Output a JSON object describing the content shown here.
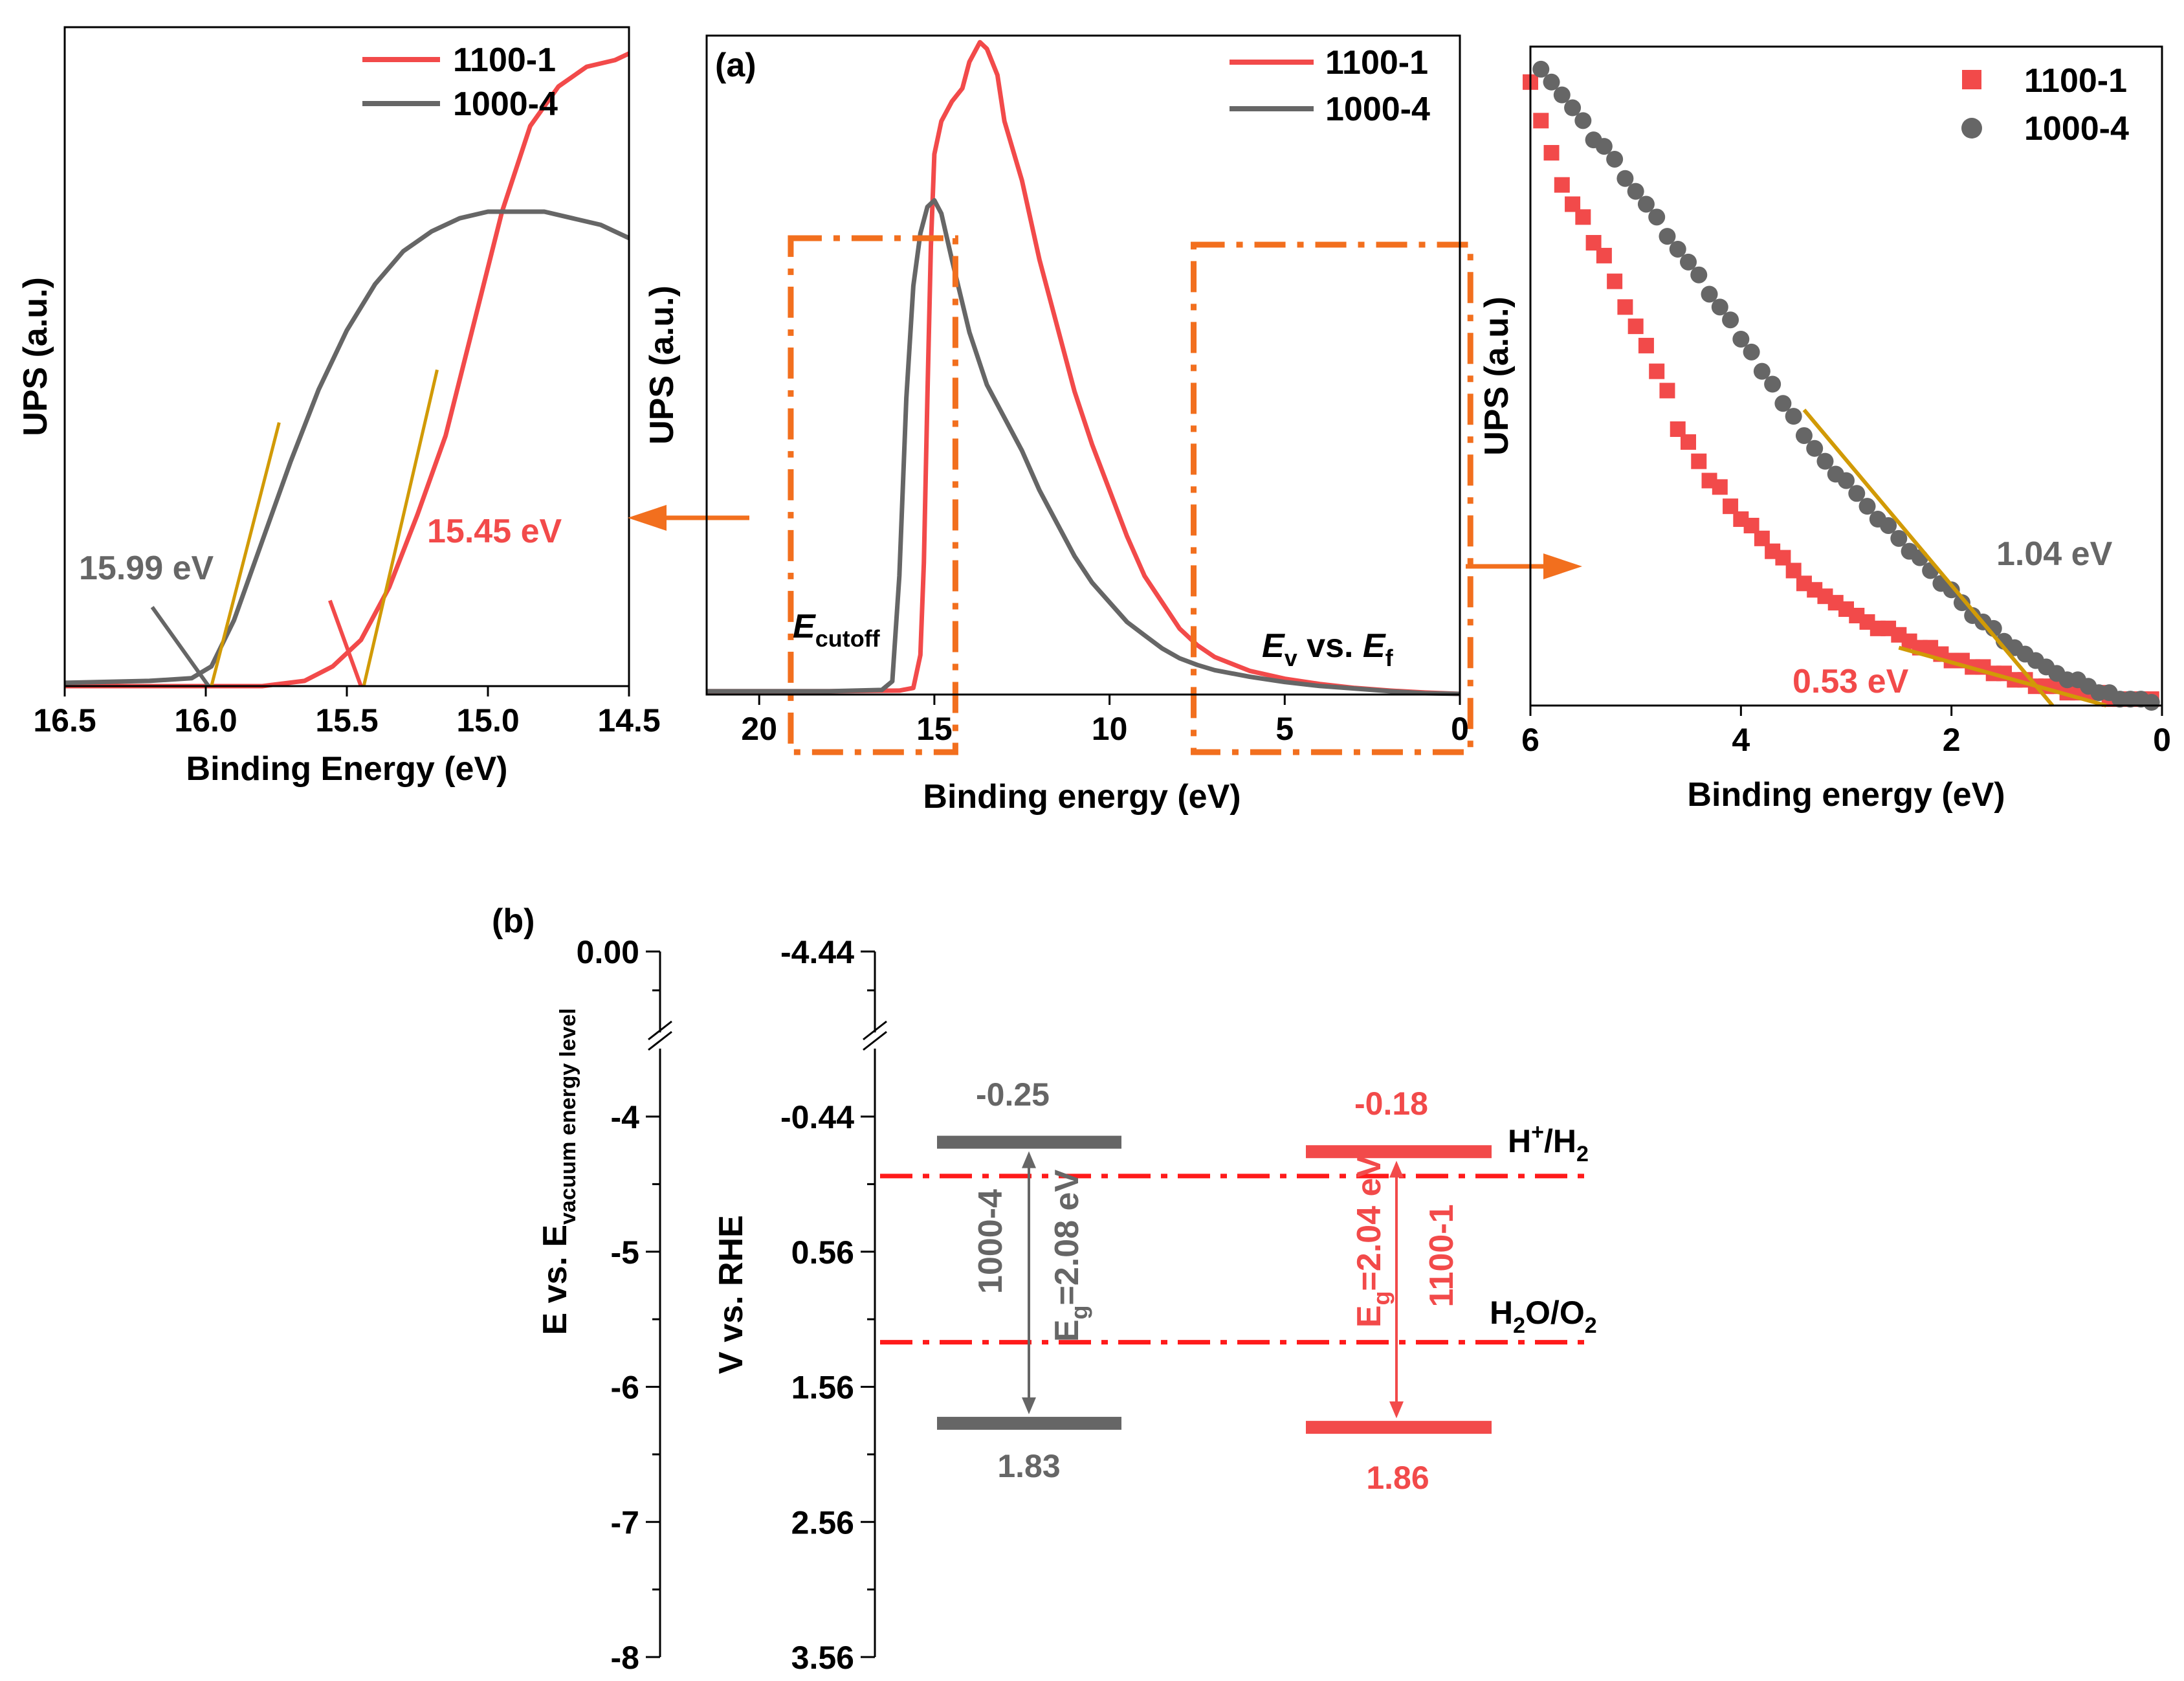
{
  "colors": {
    "red": "#f24a4a",
    "gray": "#666666",
    "orange": "#f26f1e",
    "fit": "#d19a06",
    "black": "#000000"
  },
  "chart_data": [
    {
      "id": "left-zoom",
      "type": "line",
      "title": "",
      "xlabel": "Binding Energy (eV)",
      "ylabel": "UPS (a.u.)",
      "xlim": [
        16.5,
        14.5
      ],
      "ylim": [
        0,
        1
      ],
      "x_ticks": [
        "16.5",
        "16.0",
        "15.5",
        "15.0",
        "14.5"
      ],
      "legend": [
        "1100-1",
        "1000-4"
      ],
      "series": [
        {
          "name": "1100-1",
          "color": "#f24a4a",
          "x": [
            16.5,
            16.2,
            16.0,
            15.8,
            15.65,
            15.55,
            15.45,
            15.35,
            15.25,
            15.15,
            15.05,
            14.95,
            14.85,
            14.75,
            14.65,
            14.55,
            14.5
          ],
          "y": [
            0.0,
            0.0,
            0.0,
            0.0,
            0.008,
            0.03,
            0.07,
            0.15,
            0.26,
            0.38,
            0.55,
            0.72,
            0.85,
            0.91,
            0.94,
            0.95,
            0.96
          ]
        },
        {
          "name": "1000-4",
          "color": "#666666",
          "x": [
            16.5,
            16.2,
            16.05,
            15.98,
            15.9,
            15.8,
            15.7,
            15.6,
            15.5,
            15.4,
            15.3,
            15.2,
            15.1,
            15.0,
            14.9,
            14.8,
            14.7,
            14.6,
            14.5
          ],
          "y": [
            0.005,
            0.008,
            0.012,
            0.03,
            0.1,
            0.22,
            0.34,
            0.45,
            0.54,
            0.61,
            0.66,
            0.69,
            0.71,
            0.72,
            0.72,
            0.72,
            0.71,
            0.7,
            0.68
          ]
        }
      ],
      "fit_lines": [
        {
          "color": "#d19a06",
          "x": [
            15.98,
            15.74
          ],
          "y": [
            0.0,
            0.4
          ]
        },
        {
          "color": "#d19a06",
          "x": [
            15.44,
            15.18
          ],
          "y": [
            0.0,
            0.48
          ]
        }
      ],
      "markers": [
        {
          "color": "#666666",
          "x": [
            16.19,
            15.99
          ],
          "y": [
            0.12,
            0.0
          ]
        },
        {
          "color": "#f24a4a",
          "x": [
            15.56,
            15.45
          ],
          "y": [
            0.13,
            0.0
          ]
        }
      ],
      "annotations": [
        {
          "text": "15.99 eV",
          "color": "#666666"
        },
        {
          "text": "15.45 eV",
          "color": "#f24a4a"
        }
      ]
    },
    {
      "id": "center-full",
      "type": "line",
      "panel_label": "(a)",
      "xlabel": "Binding energy (eV)",
      "ylabel": "UPS (a.u.)",
      "xlim": [
        21.5,
        0
      ],
      "ylim": [
        0,
        1
      ],
      "x_ticks": [
        "20",
        "15",
        "10",
        "5",
        "0"
      ],
      "legend": [
        "1100-1",
        "1000-4"
      ],
      "series": [
        {
          "name": "1100-1",
          "color": "#f24a4a",
          "x": [
            21.5,
            18,
            16,
            15.6,
            15.4,
            15.3,
            15.2,
            15.1,
            15.0,
            14.8,
            14.5,
            14.2,
            14.0,
            13.7,
            13.5,
            13.2,
            13.0,
            12.5,
            12.0,
            11.5,
            11.0,
            10.5,
            10.0,
            9.5,
            9.0,
            8.5,
            8.0,
            7.5,
            7.0,
            6.0,
            5.0,
            4.0,
            3.0,
            2.0,
            1.0,
            0.0
          ],
          "y": [
            0.005,
            0.005,
            0.006,
            0.01,
            0.06,
            0.2,
            0.45,
            0.68,
            0.82,
            0.87,
            0.9,
            0.92,
            0.96,
            0.99,
            0.98,
            0.94,
            0.87,
            0.78,
            0.66,
            0.56,
            0.46,
            0.38,
            0.31,
            0.24,
            0.18,
            0.14,
            0.1,
            0.075,
            0.057,
            0.036,
            0.024,
            0.016,
            0.01,
            0.006,
            0.003,
            0.001
          ]
        },
        {
          "name": "1000-4",
          "color": "#666666",
          "x": [
            21.5,
            18,
            16.5,
            16.2,
            16.0,
            15.8,
            15.6,
            15.4,
            15.2,
            15.0,
            14.8,
            14.5,
            14.0,
            13.5,
            13.0,
            12.5,
            12.0,
            11.5,
            11.0,
            10.5,
            10.0,
            9.5,
            9.0,
            8.5,
            8.0,
            7.5,
            7.0,
            6.0,
            5.0,
            4.0,
            3.0,
            2.0,
            1.0,
            0.0
          ],
          "y": [
            0.005,
            0.005,
            0.007,
            0.02,
            0.18,
            0.45,
            0.62,
            0.7,
            0.74,
            0.75,
            0.73,
            0.66,
            0.55,
            0.47,
            0.42,
            0.37,
            0.31,
            0.26,
            0.21,
            0.17,
            0.14,
            0.11,
            0.09,
            0.07,
            0.055,
            0.045,
            0.037,
            0.027,
            0.019,
            0.013,
            0.009,
            0.005,
            0.002,
            0.001
          ]
        }
      ],
      "boxes": [
        {
          "x0": 19.1,
          "x1": 14.4
        },
        {
          "x0": 7.6,
          "x1": -0.3
        }
      ],
      "annotations": [
        {
          "main": "E",
          "sub": "cutoff"
        },
        {
          "main1": "E",
          "sub1": "v",
          "mid": " vs. ",
          "main2": "E",
          "sub2": "f"
        }
      ]
    },
    {
      "id": "right-zoom",
      "type": "scatter",
      "xlabel": "Binding energy (eV)",
      "ylabel": "UPS (a.u.)",
      "xlim": [
        6,
        0
      ],
      "ylim": [
        0,
        1
      ],
      "x_ticks": [
        "6",
        "4",
        "2",
        "0"
      ],
      "legend": [
        "1100-1",
        "1000-4"
      ],
      "series": [
        {
          "name": "1100-1",
          "color": "#f24a4a",
          "marker": "square",
          "x": [
            6.0,
            5.9,
            5.8,
            5.7,
            5.6,
            5.5,
            5.4,
            5.3,
            5.2,
            5.1,
            5.0,
            4.9,
            4.8,
            4.7,
            4.6,
            4.5,
            4.4,
            4.3,
            4.2,
            4.1,
            4.0,
            3.9,
            3.8,
            3.7,
            3.6,
            3.5,
            3.4,
            3.3,
            3.2,
            3.1,
            3.0,
            2.9,
            2.8,
            2.7,
            2.6,
            2.5,
            2.4,
            2.3,
            2.2,
            2.1,
            2.0,
            1.9,
            1.8,
            1.7,
            1.6,
            1.5,
            1.4,
            1.3,
            1.2,
            1.1,
            1.0,
            0.9,
            0.8,
            0.7,
            0.6,
            0.5,
            0.4,
            0.3,
            0.2,
            0.1
          ],
          "y": [
            0.97,
            0.91,
            0.86,
            0.81,
            0.78,
            0.76,
            0.72,
            0.7,
            0.66,
            0.62,
            0.59,
            0.56,
            0.52,
            0.49,
            0.43,
            0.41,
            0.38,
            0.35,
            0.34,
            0.31,
            0.29,
            0.28,
            0.26,
            0.24,
            0.23,
            0.21,
            0.19,
            0.18,
            0.17,
            0.16,
            0.15,
            0.14,
            0.13,
            0.12,
            0.12,
            0.11,
            0.1,
            0.09,
            0.09,
            0.08,
            0.07,
            0.07,
            0.06,
            0.06,
            0.05,
            0.05,
            0.04,
            0.04,
            0.03,
            0.03,
            0.03,
            0.02,
            0.02,
            0.02,
            0.02,
            0.01,
            0.01,
            0.01,
            0.01,
            0.01
          ]
        },
        {
          "name": "1000-4",
          "color": "#666666",
          "marker": "circle",
          "x": [
            5.9,
            5.8,
            5.7,
            5.6,
            5.5,
            5.4,
            5.3,
            5.2,
            5.1,
            5.0,
            4.9,
            4.8,
            4.7,
            4.6,
            4.5,
            4.4,
            4.3,
            4.2,
            4.1,
            4.0,
            3.9,
            3.8,
            3.7,
            3.6,
            3.5,
            3.4,
            3.3,
            3.2,
            3.1,
            3.0,
            2.9,
            2.8,
            2.7,
            2.6,
            2.5,
            2.4,
            2.3,
            2.2,
            2.1,
            2.0,
            1.9,
            1.8,
            1.7,
            1.6,
            1.5,
            1.4,
            1.3,
            1.2,
            1.1,
            1.0,
            0.9,
            0.8,
            0.7,
            0.6,
            0.5,
            0.4,
            0.3,
            0.2,
            0.1
          ],
          "y": [
            0.99,
            0.97,
            0.95,
            0.93,
            0.91,
            0.88,
            0.87,
            0.85,
            0.82,
            0.8,
            0.78,
            0.76,
            0.73,
            0.71,
            0.69,
            0.67,
            0.64,
            0.62,
            0.6,
            0.57,
            0.55,
            0.52,
            0.5,
            0.47,
            0.45,
            0.42,
            0.4,
            0.38,
            0.36,
            0.35,
            0.33,
            0.31,
            0.29,
            0.28,
            0.26,
            0.24,
            0.23,
            0.21,
            0.19,
            0.18,
            0.16,
            0.14,
            0.13,
            0.12,
            0.1,
            0.09,
            0.08,
            0.07,
            0.06,
            0.05,
            0.04,
            0.04,
            0.03,
            0.02,
            0.02,
            0.01,
            0.01,
            0.01,
            0.005
          ]
        }
      ],
      "fit_lines": [
        {
          "color": "#d19a06",
          "x": [
            3.4,
            1.04
          ],
          "y": [
            0.46,
            0.0
          ]
        },
        {
          "color": "#d19a06",
          "x": [
            2.5,
            0.53
          ],
          "y": [
            0.09,
            0.0
          ]
        }
      ],
      "annotations": [
        {
          "text": "1.04 eV",
          "color": "#666666"
        },
        {
          "text": "0.53 eV",
          "color": "#f24a4a"
        }
      ]
    },
    {
      "id": "band-diagram",
      "type": "diagram",
      "panel_label": "(b)",
      "left_axis": {
        "label_main": "E vs. E",
        "label_sub": "vacuum energy level",
        "ticks": [
          "0.00",
          "-4",
          "-5",
          "-6",
          "-7",
          "-8"
        ]
      },
      "right_axis": {
        "label": "V vs. RHE",
        "ticks": [
          "-4.44",
          "-0.44",
          "0.56",
          "1.56",
          "2.56",
          "3.56"
        ]
      },
      "bands": [
        {
          "sample": "1000-4",
          "color": "#666666",
          "cb": -0.25,
          "vb": 1.83,
          "cb_label": "-0.25",
          "vb_label": "1.83",
          "eg_label": "=2.08 eV",
          "eg_main": "E",
          "eg_sub": "g"
        },
        {
          "sample": "1100-1",
          "color": "#f24a4a",
          "cb": -0.18,
          "vb": 1.86,
          "cb_label": "-0.18",
          "vb_label": "1.86",
          "eg_label": "=2.04 eV",
          "eg_main": "E",
          "eg_sub": "g"
        }
      ],
      "redox": [
        {
          "potential": 0.0,
          "label_main": "H",
          "label_sup": "+",
          "label_mid": "/H",
          "label_sub": "2"
        },
        {
          "potential": 1.23,
          "label_main": "H",
          "label_sub1": "2",
          "label_mid": "O/O",
          "label_sub2": "2"
        }
      ]
    }
  ]
}
